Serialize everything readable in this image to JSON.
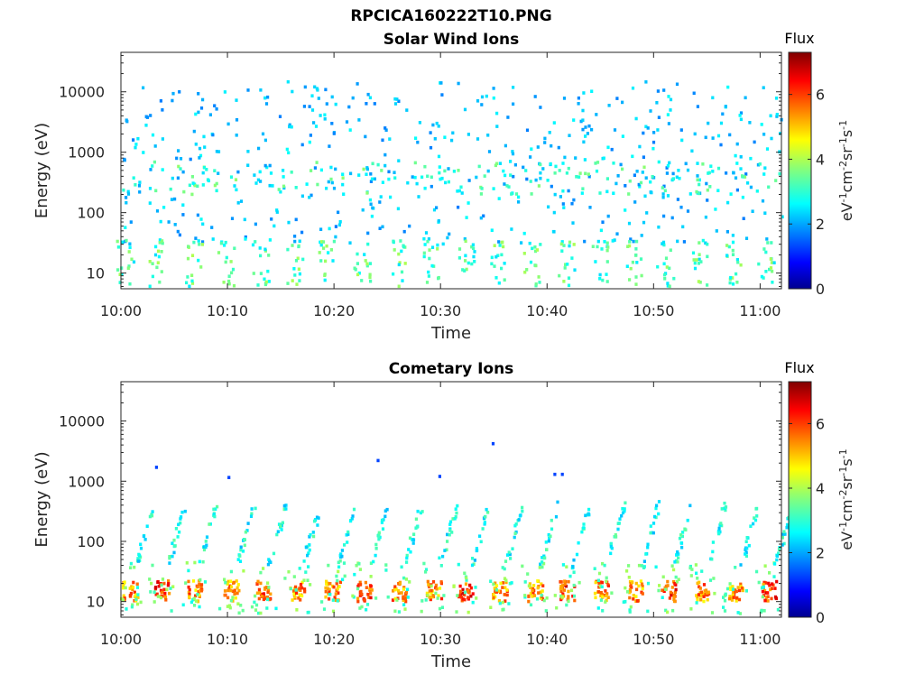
{
  "figure": {
    "main_title": "RPCICA160222T10.PNG"
  },
  "chart_data": [
    {
      "type": "heatmap",
      "title": "Solar Wind Ions",
      "xlabel": "Time",
      "ylabel": "Energy (eV)",
      "x_ticks": [
        "10:00",
        "10:10",
        "10:20",
        "10:30",
        "10:40",
        "10:50",
        "11:00"
      ],
      "y_ticks": [
        "10",
        "100",
        "1000",
        "10000"
      ],
      "y_scale": "log",
      "ylim": [
        5.5,
        45000
      ],
      "xlim": [
        "10:00",
        "11:02"
      ],
      "colorbar": {
        "label": "Flux",
        "units": "eV-1cm-2sr-1s-1",
        "ticks": [
          "0",
          "2",
          "4",
          "6"
        ],
        "range": [
          0,
          7.3
        ],
        "colormap": "jet"
      },
      "features": {
        "low_energy_band_eV": [
          6,
          35
        ],
        "low_energy_band_flux": [
          2.5,
          4.0
        ],
        "mid_band_eV": [
          200,
          700
        ],
        "mid_band_flux": [
          2.5,
          3.8
        ],
        "sparse_background_eV": [
          30,
          15000
        ],
        "sparse_background_flux": [
          1.8,
          2.8
        ]
      }
    },
    {
      "type": "heatmap",
      "title": "Cometary Ions",
      "xlabel": "Time",
      "ylabel": "Energy (eV)",
      "x_ticks": [
        "10:00",
        "10:10",
        "10:20",
        "10:30",
        "10:40",
        "10:50",
        "11:00"
      ],
      "y_ticks": [
        "10",
        "100",
        "1000",
        "10000"
      ],
      "y_scale": "log",
      "ylim": [
        5.5,
        45000
      ],
      "xlim": [
        "10:00",
        "11:02"
      ],
      "colorbar": {
        "label": "Flux",
        "units": "eV-1cm-2sr-1s-1",
        "ticks": [
          "0",
          "2",
          "4",
          "6"
        ],
        "range": [
          0,
          7.3
        ],
        "colormap": "jet"
      },
      "features": {
        "periodic_bursts_minutes": [
          0.5,
          3.5,
          6.5,
          10.0,
          13.0,
          16.2,
          19.5,
          22.5,
          25.7,
          29.0,
          32.0,
          35.2,
          38.5,
          41.5,
          44.7,
          48.0,
          51.0,
          54.2,
          57.3,
          60.5
        ],
        "burst_core_eV": [
          10,
          22
        ],
        "burst_core_flux": [
          4.5,
          6.2
        ],
        "dispersion_arc_top_eV": 400,
        "arc_flux": [
          2.2,
          3.5
        ]
      }
    }
  ]
}
